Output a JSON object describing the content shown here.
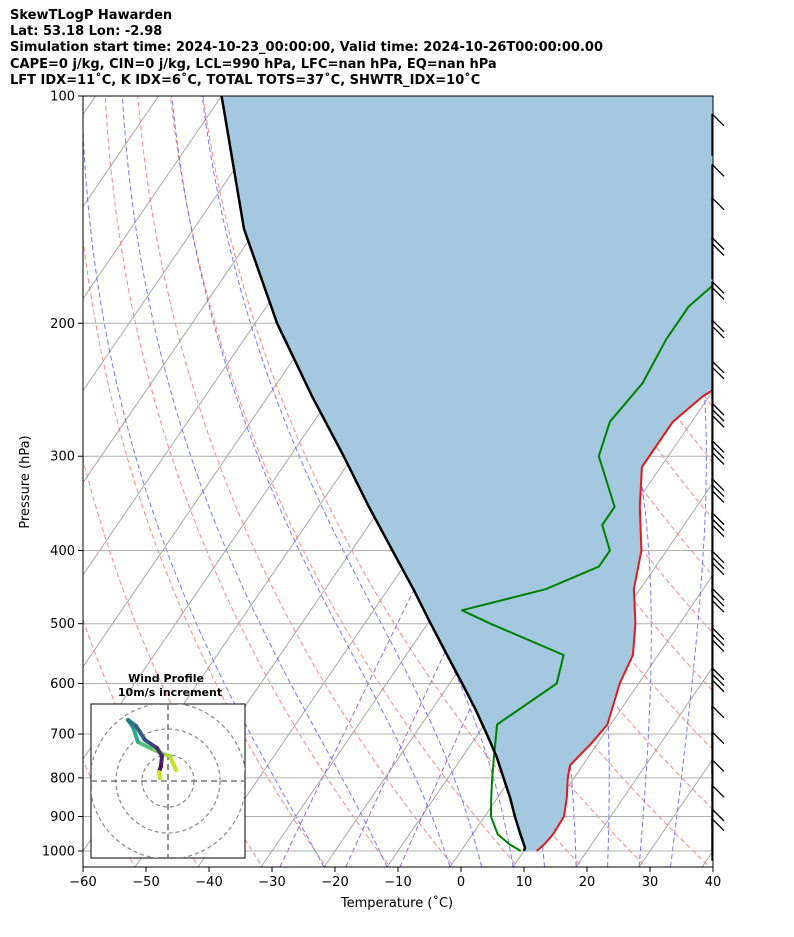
{
  "header": {
    "line1": "SkewTLogP Hawarden",
    "line2": "Lat: 53.18   Lon: -2.98",
    "line3": "Simulation start time: 2024-10-23_00:00:00, Valid time: 2024-10-26T00:00:00.00",
    "line4": "CAPE=0 j/kg, CIN=0 j/kg, LCL=990 hPa, LFC=nan hPa, EQ=nan hPa",
    "line5": "LFT IDX=11˚C, K IDX=6˚C, TOTAL TOTS=37˚C, SHWTR_IDX=10˚C"
  },
  "chart_data": {
    "type": "line",
    "subtype": "skew-t log-p",
    "xlabel": "Temperature (˚C)",
    "ylabel": "Pressure (hPa)",
    "xlim": [
      -60,
      40
    ],
    "ylim": [
      1050,
      100
    ],
    "y_scale": "log",
    "skew_deg_per_decade": 82,
    "xticks": [
      -60,
      -50,
      -40,
      -30,
      -20,
      -10,
      0,
      10,
      20,
      30,
      40
    ],
    "yticks": [
      1000,
      900,
      800,
      700,
      600,
      500,
      400,
      300,
      200,
      100
    ],
    "grid": true,
    "colors": {
      "temperature": "#e31a1c",
      "dewpoint": "#008000",
      "parcel": "#000000",
      "cape_shading": "#a3c8e0",
      "isotherm": "#a0a0a0",
      "dry_adiabat": "#ff6060",
      "moist_adiabat": "#5555ff",
      "mixing_ratio": "#9040c0"
    },
    "series": [
      {
        "key": "temperature",
        "points": [
          [
            1000,
            12
          ],
          [
            980,
            12.5
          ],
          [
            950,
            12.8
          ],
          [
            900,
            12.6
          ],
          [
            850,
            11
          ],
          [
            800,
            9
          ],
          [
            770,
            8
          ],
          [
            720,
            9
          ],
          [
            680,
            9.5
          ],
          [
            600,
            7
          ],
          [
            550,
            6
          ],
          [
            500,
            3
          ],
          [
            450,
            -1
          ],
          [
            400,
            -4
          ],
          [
            350,
            -9
          ],
          [
            310,
            -13
          ],
          [
            270,
            -13
          ],
          [
            250,
            -11
          ],
          [
            220,
            -5
          ],
          [
            200,
            -3
          ],
          [
            180,
            -2
          ],
          [
            165,
            -3
          ],
          [
            150,
            -2
          ],
          [
            135,
            1
          ],
          [
            125,
            3
          ],
          [
            115,
            4
          ],
          [
            105,
            6
          ],
          [
            100,
            7
          ]
        ]
      },
      {
        "key": "dewpoint",
        "points": [
          [
            1000,
            9.5
          ],
          [
            980,
            7
          ],
          [
            950,
            4
          ],
          [
            900,
            1
          ],
          [
            850,
            -1
          ],
          [
            800,
            -3
          ],
          [
            750,
            -5
          ],
          [
            680,
            -8
          ],
          [
            600,
            -3
          ],
          [
            550,
            -5
          ],
          [
            500,
            -20
          ],
          [
            480,
            -26
          ],
          [
            450,
            -15
          ],
          [
            420,
            -9
          ],
          [
            400,
            -9
          ],
          [
            370,
            -13
          ],
          [
            350,
            -13
          ],
          [
            300,
            -21
          ],
          [
            270,
            -23
          ],
          [
            240,
            -22
          ],
          [
            210,
            -23
          ],
          [
            200,
            -23
          ],
          [
            190,
            -23
          ],
          [
            175,
            -21
          ],
          [
            160,
            -19
          ],
          [
            150,
            -18
          ],
          [
            140,
            -16
          ],
          [
            130,
            -13
          ],
          [
            115,
            -9
          ],
          [
            100,
            -4
          ]
        ]
      },
      {
        "key": "parcel",
        "points": [
          [
            1000,
            10
          ],
          [
            990,
            9.8
          ],
          [
            950,
            7.6
          ],
          [
            900,
            4.8
          ],
          [
            850,
            2
          ],
          [
            800,
            -1.2
          ],
          [
            750,
            -4.6
          ],
          [
            700,
            -8.6
          ],
          [
            650,
            -13
          ],
          [
            600,
            -18
          ],
          [
            550,
            -23.5
          ],
          [
            500,
            -29.5
          ],
          [
            450,
            -36
          ],
          [
            400,
            -43.5
          ],
          [
            350,
            -52
          ],
          [
            300,
            -61.5
          ],
          [
            250,
            -73
          ],
          [
            200,
            -86.5
          ],
          [
            150,
            -102
          ],
          [
            100,
            -120
          ]
        ]
      }
    ],
    "wind_barbs_visible": true,
    "hodograph": {
      "title": "Wind Profile",
      "subtitle": "10m/s increment",
      "rings_ms": [
        10,
        20,
        30
      ]
    }
  }
}
